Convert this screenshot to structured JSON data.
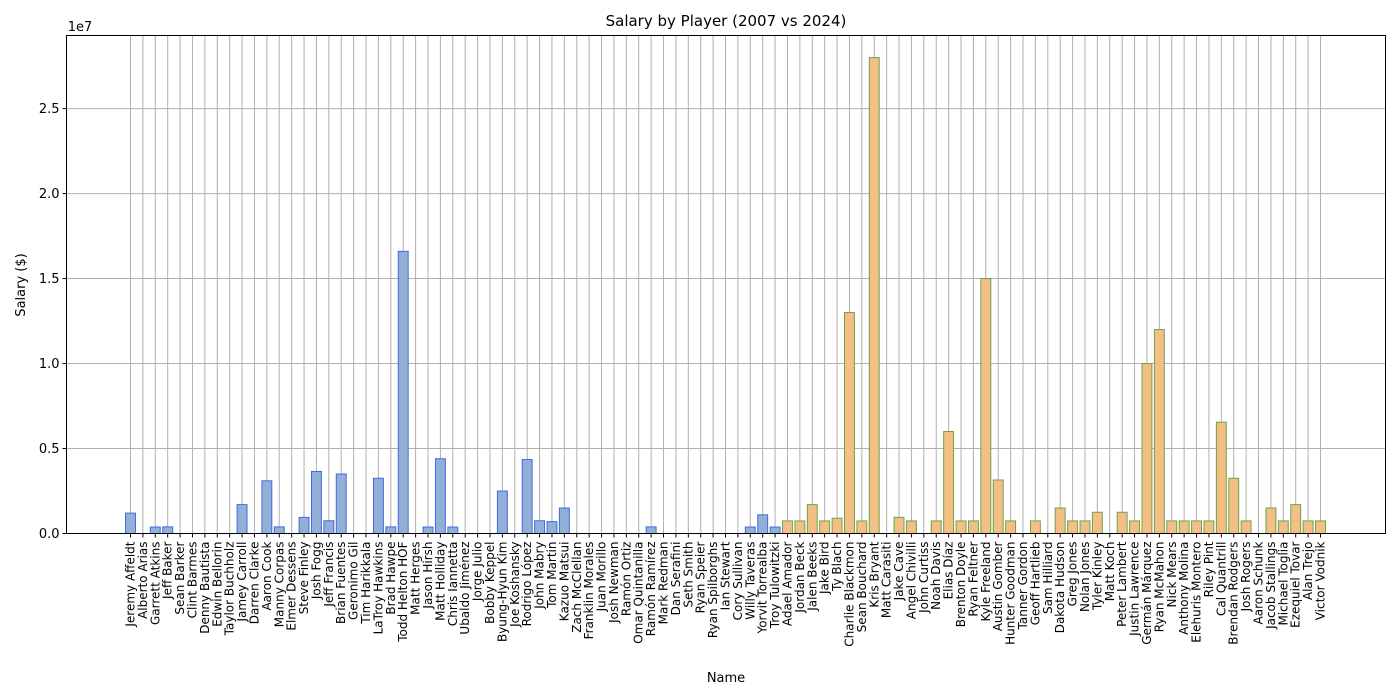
{
  "chart_data": {
    "type": "bar",
    "title": "Salary by Player (2007 vs 2024)",
    "xlabel": "Name",
    "ylabel": "Salary ($)",
    "y_offset_label": "1e7",
    "ylim": [
      0,
      29300000
    ],
    "yticks": [
      0,
      5000000,
      10000000,
      15000000,
      20000000,
      25000000
    ],
    "ytick_labels": [
      "0.0",
      "0.5",
      "1.0",
      "1.5",
      "2.0",
      "2.5"
    ],
    "grid": true,
    "legend": "none",
    "colors": {
      "2007_fill": "#92b0d6",
      "2007_edge": "#4169e1",
      "2024_fill": "#f3bf85",
      "2024_edge": "#6fa34a"
    },
    "categories": [
      "Jeremy Affeldt",
      "Alberto Arias",
      "Garrett Atkins",
      "Jeff Baker",
      "Sean Barker",
      "Clint Barmes",
      "Denny Bautista",
      "Edwin Bellorin",
      "Taylor Buchholz",
      "Jamey Carroll",
      "Darren Clarke",
      "Aaron Cook",
      "Manny Corpas",
      "Elmer Dessens",
      "Steve Finley",
      "Josh Fogg",
      "Jeff Francis",
      "Brian Fuentes",
      "Geronimo Gil",
      "Tim Harikkala",
      "LaTroy Hawkins",
      "Brad Hawpe",
      "Todd Helton HOF",
      "Matt Herges",
      "Jason Hirsh",
      "Matt Holliday",
      "Chris Iannetta",
      "Ubaldo Jiménez",
      "Jorge Julio",
      "Bobby Keppel",
      "Byung-Hyun Kim",
      "Joe Koshansky",
      "Rodrigo López",
      "John Mabry",
      "Tom Martin",
      "Kazuo Matsui",
      "Zach McClellan",
      "Franklin Morales",
      "Juan Morillo",
      "Josh Newman",
      "Ramón Ortiz",
      "Omar Quintanilla",
      "Ramón Ramírez",
      "Mark Redman",
      "Dan Serafini",
      "Seth Smith",
      "Ryan Speier",
      "Ryan Spilborghs",
      "Ian Stewart",
      "Cory Sullivan",
      "Willy Taveras",
      "Yorvit Torrealba",
      "Troy Tulowitzki",
      "Adael Amador",
      "Jordan Beck",
      "Jalen Beeks",
      "Jake Bird",
      "Ty Blach",
      "Charlie Blackmon",
      "Sean Bouchard",
      "Kris Bryant",
      "Matt Carasiti",
      "Jake Cave",
      "Angel Chivilli",
      "John Curtiss",
      "Noah Davis",
      "Elias Díaz",
      "Brenton Doyle",
      "Ryan Feltner",
      "Kyle Freeland",
      "Austin Gomber",
      "Hunter Goodman",
      "Tanner Gordon",
      "Geoff Hartlieb",
      "Sam Hilliard",
      "Dakota Hudson",
      "Greg Jones",
      "Nolan Jones",
      "Tyler Kinley",
      "Matt Koch",
      "Peter Lambert",
      "Justin Lawrence",
      "Germán Márquez",
      "Ryan McMahon",
      "Nick Mears",
      "Anthony Molina",
      "Elehuris Montero",
      "Riley Pint",
      "Cal Quantrill",
      "Brendan Rodgers",
      "Josh Rogers",
      "Aaron Schunk",
      "Jacob Stallings",
      "Michael Toglia",
      "Ezequiel Tovar",
      "Alan Trejo",
      "Victor Vodnik"
    ],
    "series": [
      {
        "values": [
          1200000,
          0,
          380000,
          390000,
          0,
          0,
          0,
          0,
          0,
          1700000,
          0,
          3100000,
          390000,
          0,
          950000,
          3650000,
          750000,
          3500000,
          0,
          0,
          3250000,
          390000,
          16600000,
          0,
          380000,
          4400000,
          380000,
          0,
          0,
          0,
          2500000,
          0,
          4350000,
          750000,
          700000,
          1500000,
          0,
          0,
          0,
          0,
          0,
          0,
          390000,
          0,
          0,
          0,
          0,
          0,
          0,
          0,
          380000,
          1100000,
          380000,
          null,
          null,
          null,
          null,
          null,
          null,
          null,
          null,
          null,
          null,
          null,
          null,
          null,
          null,
          null,
          null,
          null,
          null,
          null,
          null,
          null,
          null,
          null,
          null,
          null,
          null,
          null,
          null,
          null,
          null,
          null,
          null,
          null,
          null,
          null,
          null,
          null,
          null,
          null,
          null,
          null,
          null,
          null,
          null
        ]
      },
      {
        "values": [
          null,
          null,
          null,
          null,
          null,
          null,
          null,
          null,
          null,
          null,
          null,
          null,
          null,
          null,
          null,
          null,
          null,
          null,
          null,
          null,
          null,
          null,
          null,
          null,
          null,
          null,
          null,
          null,
          null,
          null,
          null,
          null,
          null,
          null,
          null,
          null,
          null,
          null,
          null,
          null,
          null,
          null,
          null,
          null,
          null,
          null,
          null,
          null,
          null,
          null,
          null,
          null,
          null,
          740000,
          740000,
          1700000,
          740000,
          900000,
          13000000,
          740000,
          28000000,
          0,
          950000,
          740000,
          0,
          740000,
          6000000,
          740000,
          740000,
          15000000,
          3150000,
          740000,
          0,
          740000,
          0,
          1500000,
          740000,
          740000,
          1250000,
          0,
          1250000,
          740000,
          10000000,
          12000000,
          740000,
          740000,
          740000,
          740000,
          6550000,
          3250000,
          740000,
          0,
          1500000,
          740000,
          1700000,
          740000,
          740000
        ]
      }
    ]
  }
}
